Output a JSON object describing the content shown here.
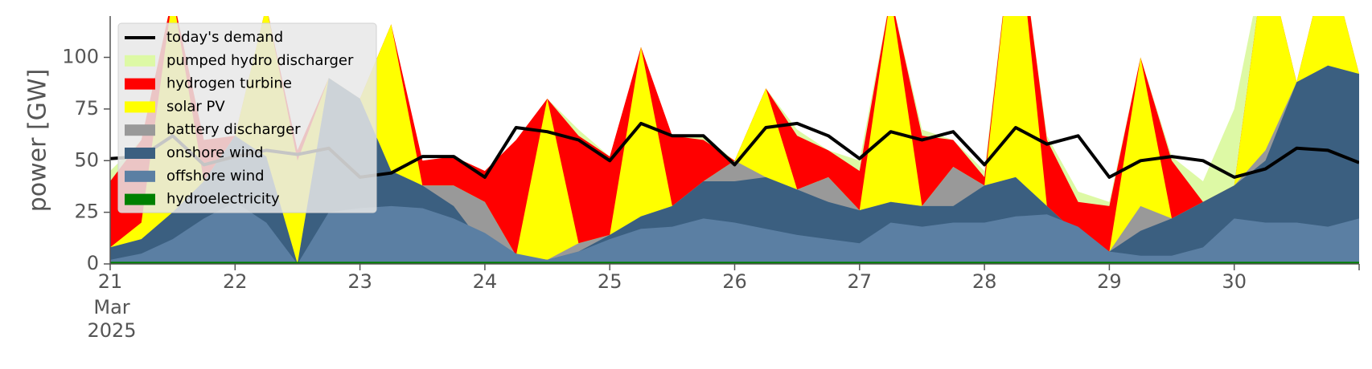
{
  "chart_data": {
    "type": "area",
    "ylabel": "power [GW]",
    "ylim": [
      0,
      120
    ],
    "xlim": [
      "2025-03-21T00:00",
      "2025-03-31T00:00"
    ],
    "y_ticks": [
      0,
      25,
      50,
      75,
      100
    ],
    "x_ticks": [
      {
        "date": "2025-03-21",
        "label": "21",
        "sub1": "Mar",
        "sub2": "2025"
      },
      {
        "date": "2025-03-22",
        "label": "22"
      },
      {
        "date": "2025-03-23",
        "label": "23"
      },
      {
        "date": "2025-03-24",
        "label": "24"
      },
      {
        "date": "2025-03-25",
        "label": "25"
      },
      {
        "date": "2025-03-26",
        "label": "26"
      },
      {
        "date": "2025-03-27",
        "label": "27"
      },
      {
        "date": "2025-03-28",
        "label": "28"
      },
      {
        "date": "2025-03-29",
        "label": "29"
      },
      {
        "date": "2025-03-30",
        "label": "30"
      }
    ],
    "legend_position": "top-left",
    "grid": false,
    "x": [
      "2025-03-21T00:00",
      "2025-03-21T06:00",
      "2025-03-21T12:00",
      "2025-03-21T18:00",
      "2025-03-22T00:00",
      "2025-03-22T06:00",
      "2025-03-22T12:00",
      "2025-03-22T18:00",
      "2025-03-23T00:00",
      "2025-03-23T06:00",
      "2025-03-23T12:00",
      "2025-03-23T18:00",
      "2025-03-24T00:00",
      "2025-03-24T06:00",
      "2025-03-24T12:00",
      "2025-03-24T18:00",
      "2025-03-25T00:00",
      "2025-03-25T06:00",
      "2025-03-25T12:00",
      "2025-03-25T18:00",
      "2025-03-26T00:00",
      "2025-03-26T06:00",
      "2025-03-26T12:00",
      "2025-03-26T18:00",
      "2025-03-27T00:00",
      "2025-03-27T06:00",
      "2025-03-27T12:00",
      "2025-03-27T18:00",
      "2025-03-28T00:00",
      "2025-03-28T06:00",
      "2025-03-28T12:00",
      "2025-03-28T18:00",
      "2025-03-29T00:00",
      "2025-03-29T06:00",
      "2025-03-29T12:00",
      "2025-03-29T18:00",
      "2025-03-30T00:00",
      "2025-03-30T06:00",
      "2025-03-30T12:00",
      "2025-03-30T18:00",
      "2025-03-31T00:00"
    ],
    "series": [
      {
        "name": "hydroelectricity",
        "color": "#008000",
        "type": "area",
        "values": [
          1,
          1,
          1,
          1,
          1,
          1,
          1,
          1,
          1,
          1,
          1,
          1,
          1,
          1,
          1,
          1,
          1,
          1,
          1,
          1,
          1,
          1,
          1,
          1,
          1,
          1,
          1,
          1,
          1,
          1,
          1,
          1,
          1,
          1,
          1,
          1,
          1,
          1,
          1,
          1,
          1
        ]
      },
      {
        "name": "offshore wind",
        "color": "#5b7fa3",
        "type": "area",
        "values": [
          2,
          5,
          12,
          22,
          30,
          20,
          0,
          25,
          27,
          28,
          27,
          22,
          15,
          5,
          2,
          6,
          12,
          17,
          18,
          22,
          20,
          17,
          14,
          12,
          10,
          20,
          18,
          20,
          20,
          23,
          24,
          18,
          6,
          4,
          4,
          8,
          22,
          20,
          20,
          18,
          22
        ]
      },
      {
        "name": "onshore wind",
        "color": "#3b5f80",
        "type": "area",
        "values": [
          8,
          12,
          25,
          40,
          62,
          52,
          0,
          90,
          80,
          45,
          38,
          28,
          8,
          4,
          2,
          6,
          14,
          23,
          28,
          40,
          40,
          42,
          36,
          30,
          26,
          30,
          28,
          28,
          38,
          42,
          28,
          14,
          6,
          16,
          22,
          30,
          38,
          50,
          88,
          96,
          92
        ]
      },
      {
        "name": "battery discharger",
        "color": "#999999",
        "type": "area",
        "values": [
          8,
          12,
          25,
          40,
          62,
          52,
          0,
          90,
          80,
          45,
          38,
          38,
          30,
          4,
          2,
          10,
          14,
          23,
          28,
          40,
          50,
          42,
          36,
          42,
          26,
          30,
          28,
          47,
          38,
          42,
          28,
          14,
          6,
          28,
          22,
          30,
          38,
          55,
          88,
          96,
          92
        ]
      },
      {
        "name": "solar PV",
        "color": "#ffff00",
        "type": "area",
        "values": [
          8,
          20,
          130,
          40,
          62,
          125,
          50,
          90,
          80,
          116,
          38,
          38,
          30,
          4,
          80,
          10,
          14,
          105,
          28,
          40,
          50,
          85,
          36,
          42,
          26,
          130,
          28,
          47,
          38,
          175,
          28,
          14,
          6,
          100,
          22,
          30,
          38,
          150,
          88,
          150,
          92
        ]
      },
      {
        "name": "hydrogen turbine",
        "color": "#ff0000",
        "type": "area",
        "values": [
          40,
          60,
          130,
          60,
          62,
          125,
          55,
          90,
          80,
          116,
          50,
          52,
          45,
          60,
          80,
          62,
          52,
          105,
          62,
          60,
          50,
          85,
          62,
          55,
          45,
          130,
          62,
          60,
          42,
          175,
          60,
          30,
          28,
          100,
          50,
          30,
          38,
          150,
          88,
          150,
          92
        ]
      },
      {
        "name": "pumped hydro discharger",
        "color": "#ddf9a5",
        "type": "area",
        "values": [
          45,
          60,
          130,
          60,
          62,
          125,
          55,
          90,
          80,
          116,
          50,
          52,
          45,
          60,
          80,
          65,
          52,
          105,
          62,
          62,
          50,
          85,
          65,
          55,
          50,
          130,
          65,
          60,
          45,
          175,
          62,
          35,
          30,
          100,
          52,
          40,
          75,
          150,
          88,
          150,
          92
        ]
      },
      {
        "name": "today's demand",
        "color": "#000000",
        "type": "line",
        "values": [
          51,
          52,
          62,
          48,
          52,
          55,
          53,
          56,
          42,
          44,
          52,
          52,
          42,
          66,
          64,
          60,
          50,
          68,
          62,
          62,
          48,
          66,
          68,
          62,
          51,
          64,
          60,
          64,
          48,
          66,
          58,
          62,
          42,
          50,
          52,
          50,
          42,
          46,
          56,
          55,
          49
        ]
      }
    ]
  }
}
